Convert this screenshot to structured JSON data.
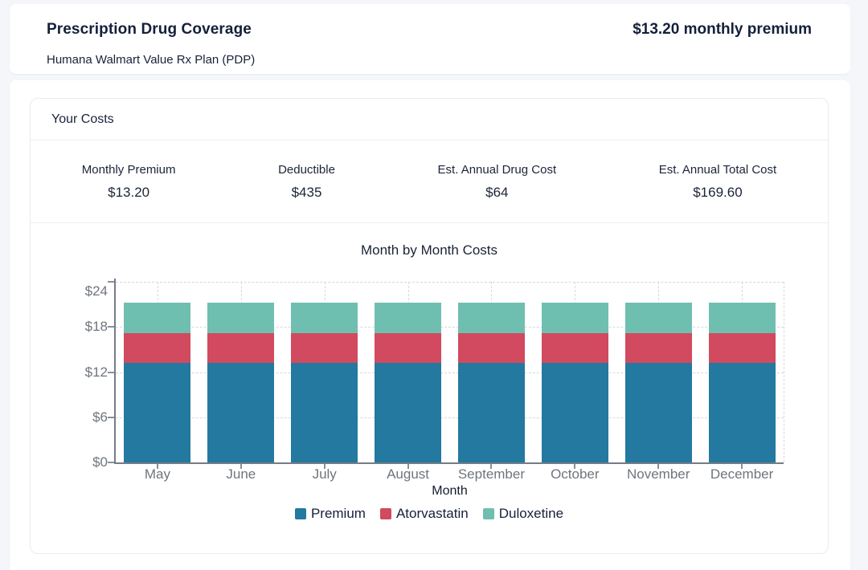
{
  "header": {
    "title": "Prescription Drug Coverage",
    "premium_note": "$13.20 monthly premium",
    "subtitle": "Humana Walmart Value Rx Plan (PDP)"
  },
  "costs_card": {
    "title": "Your Costs",
    "stats": [
      {
        "label": "Monthly Premium",
        "value": "$13.20"
      },
      {
        "label": "Deductible",
        "value": "$435"
      },
      {
        "label": "Est. Annual Drug Cost",
        "value": "$64"
      },
      {
        "label": "Est. Annual Total Cost",
        "value": "$169.60"
      }
    ]
  },
  "chart_data": {
    "type": "bar",
    "stacked": true,
    "title": "Month by Month Costs",
    "xlabel": "Month",
    "ylabel": "",
    "categories": [
      "May",
      "June",
      "July",
      "August",
      "September",
      "October",
      "November",
      "December"
    ],
    "series": [
      {
        "name": "Premium",
        "color": "#23799f",
        "values": [
          13.2,
          13.2,
          13.2,
          13.2,
          13.2,
          13.2,
          13.2,
          13.2
        ]
      },
      {
        "name": "Atorvastatin",
        "color": "#d14a5f",
        "values": [
          4,
          4,
          4,
          4,
          4,
          4,
          4,
          4
        ]
      },
      {
        "name": "Duloxetine",
        "color": "#6fbfb1",
        "values": [
          4,
          4,
          4,
          4,
          4,
          4,
          4,
          4
        ]
      }
    ],
    "y_ticks": [
      "$0",
      "$6",
      "$12",
      "$18",
      "$24"
    ],
    "y_tick_values": [
      0,
      6,
      12,
      18,
      24
    ],
    "ylim": [
      0,
      24
    ],
    "grid": true,
    "legend_position": "bottom"
  },
  "colors": {
    "premium": "#23799f",
    "atorvastatin": "#d14a5f",
    "duloxetine": "#6fbfb1",
    "axis_text": "#6f757e",
    "dark_text": "#1a2336",
    "gridline": "#d5d8dd",
    "card_border": "#e8ebf1",
    "page_background": "#f4f6f9"
  }
}
